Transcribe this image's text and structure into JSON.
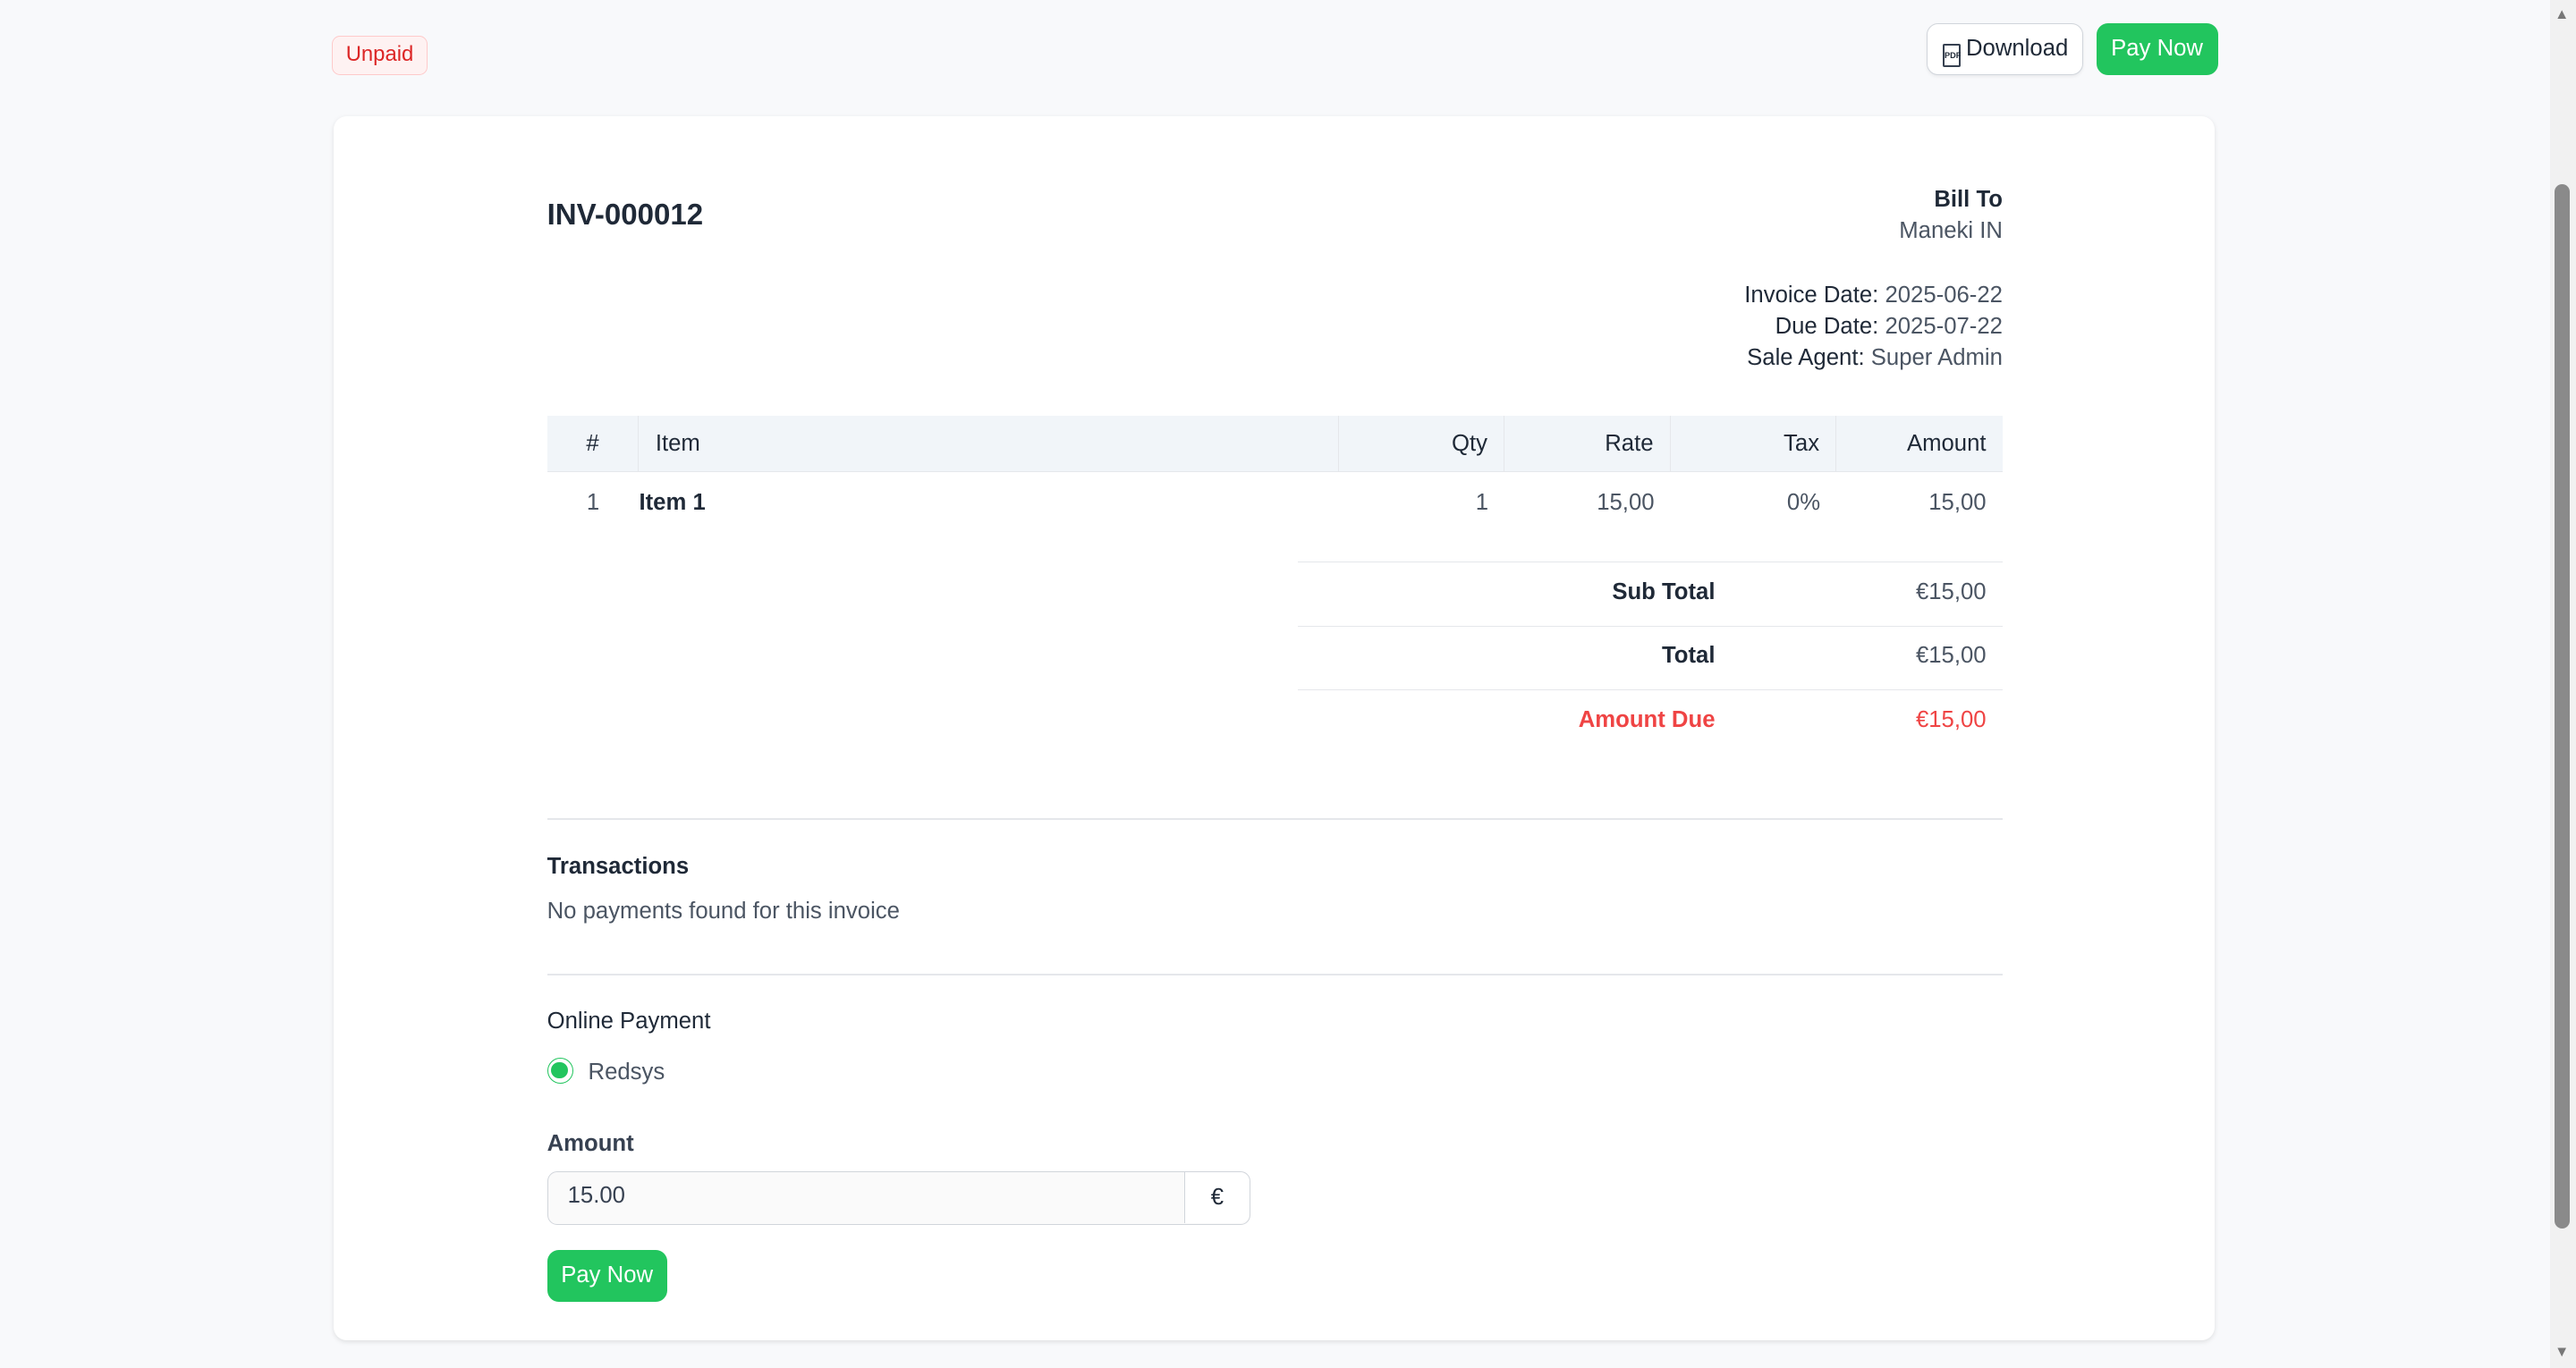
{
  "status_badge": "Unpaid",
  "header": {
    "download_label": "Download",
    "download_icon": "pdf-file-icon",
    "pay_now_label": "Pay Now"
  },
  "invoice": {
    "number": "INV-000012",
    "bill_to_label": "Bill To",
    "bill_to_name": "Maneki IN",
    "invoice_date_label": "Invoice Date:",
    "invoice_date": "2025-06-22",
    "due_date_label": "Due Date:",
    "due_date": "2025-07-22",
    "sale_agent_label": "Sale Agent:",
    "sale_agent": "Super Admin"
  },
  "table": {
    "headers": [
      "#",
      "Item",
      "Qty",
      "Rate",
      "Tax",
      "Amount"
    ],
    "rows": [
      [
        "1",
        "Item 1",
        "1",
        "15,00",
        "0%",
        "15,00"
      ]
    ]
  },
  "totals": {
    "sub_total_label": "Sub Total",
    "sub_total": "€15,00",
    "total_label": "Total",
    "total": "€15,00",
    "amount_due_label": "Amount Due",
    "amount_due": "€15,00"
  },
  "transactions": {
    "title": "Transactions",
    "empty": "No payments found for this invoice"
  },
  "payment": {
    "title": "Online Payment",
    "method": "Redsys",
    "method_selected": true,
    "amount_label": "Amount",
    "amount_value": "15.00",
    "currency": "€",
    "pay_now_label": "Pay Now"
  },
  "colors": {
    "accent": "#22c55e",
    "danger": "#dc2626"
  }
}
